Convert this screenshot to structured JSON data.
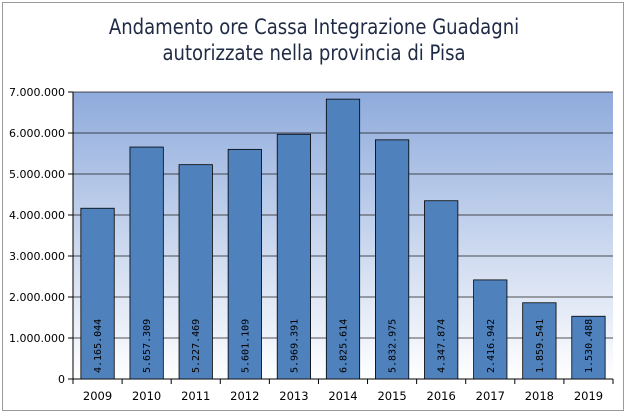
{
  "chart_data": {
    "type": "bar",
    "title_lines": [
      "Andamento ore Cassa Integrazione Guadagni",
      "autorizzate nella provincia di Pisa"
    ],
    "categories": [
      "2009",
      "2010",
      "2011",
      "2012",
      "2013",
      "2014",
      "2015",
      "2016",
      "2017",
      "2018",
      "2019"
    ],
    "values": [
      4165044,
      5657309,
      5227469,
      5601109,
      5969391,
      6825614,
      5832975,
      4347874,
      2416942,
      1859541,
      1530488
    ],
    "value_labels": [
      "4.165.044",
      "5.657.309",
      "5.227.469",
      "5.601.109",
      "5.969.391",
      "6.825.614",
      "5.832.975",
      "4.347.874",
      "2.416.942",
      "1.859.541",
      "1.530.488"
    ],
    "ylim": [
      0,
      7000000
    ],
    "yticks": [
      0,
      1000000,
      2000000,
      3000000,
      4000000,
      5000000,
      6000000,
      7000000
    ],
    "ytick_labels": [
      "0",
      "1.000.000",
      "2.000.000",
      "3.000.000",
      "4.000.000",
      "5.000.000",
      "6.000.000",
      "7.000.000"
    ],
    "xlabel": "",
    "ylabel": "",
    "grid": true,
    "legend": "none",
    "colors": {
      "bar_fill": "#4f81bd",
      "bar_stroke": "#000000",
      "plot_bg_top": "#8fabdc",
      "plot_bg_bottom": "#ffffff",
      "title": "#1f2a44"
    }
  }
}
